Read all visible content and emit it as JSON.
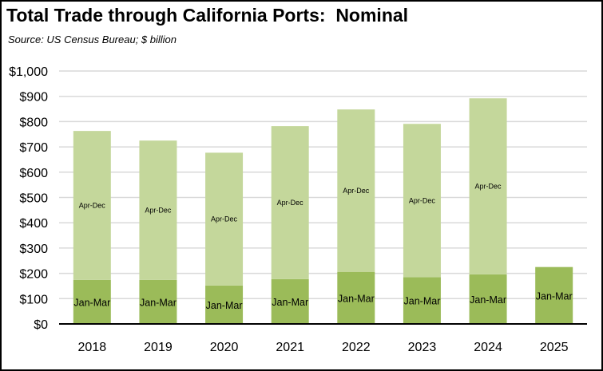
{
  "chart_data": {
    "type": "bar",
    "stacked": true,
    "title": "Total Trade through California Ports:  Nominal",
    "subtitle": "Source:  US Census Bureau; $ billion",
    "xlabel": "",
    "ylabel": "",
    "ylim": [
      0,
      1000
    ],
    "yticks": [
      "$0",
      "$100",
      "$200",
      "$300",
      "$400",
      "$500",
      "$600",
      "$700",
      "$800",
      "$900",
      "$1,000"
    ],
    "ytick_values": [
      0,
      100,
      200,
      300,
      400,
      500,
      600,
      700,
      800,
      900,
      1000
    ],
    "grid": true,
    "legend": "none",
    "categories": [
      "2018",
      "2019",
      "2020",
      "2021",
      "2022",
      "2023",
      "2024",
      "2025"
    ],
    "series": [
      {
        "name": "Jan-Mar",
        "color": "#9bbb59",
        "values": [
          174,
          174,
          152,
          177,
          206,
          185,
          196,
          225
        ]
      },
      {
        "name": "Apr-Dec",
        "color": "#c4d79b",
        "values": [
          589,
          551,
          525,
          605,
          642,
          606,
          696,
          null
        ]
      }
    ]
  }
}
